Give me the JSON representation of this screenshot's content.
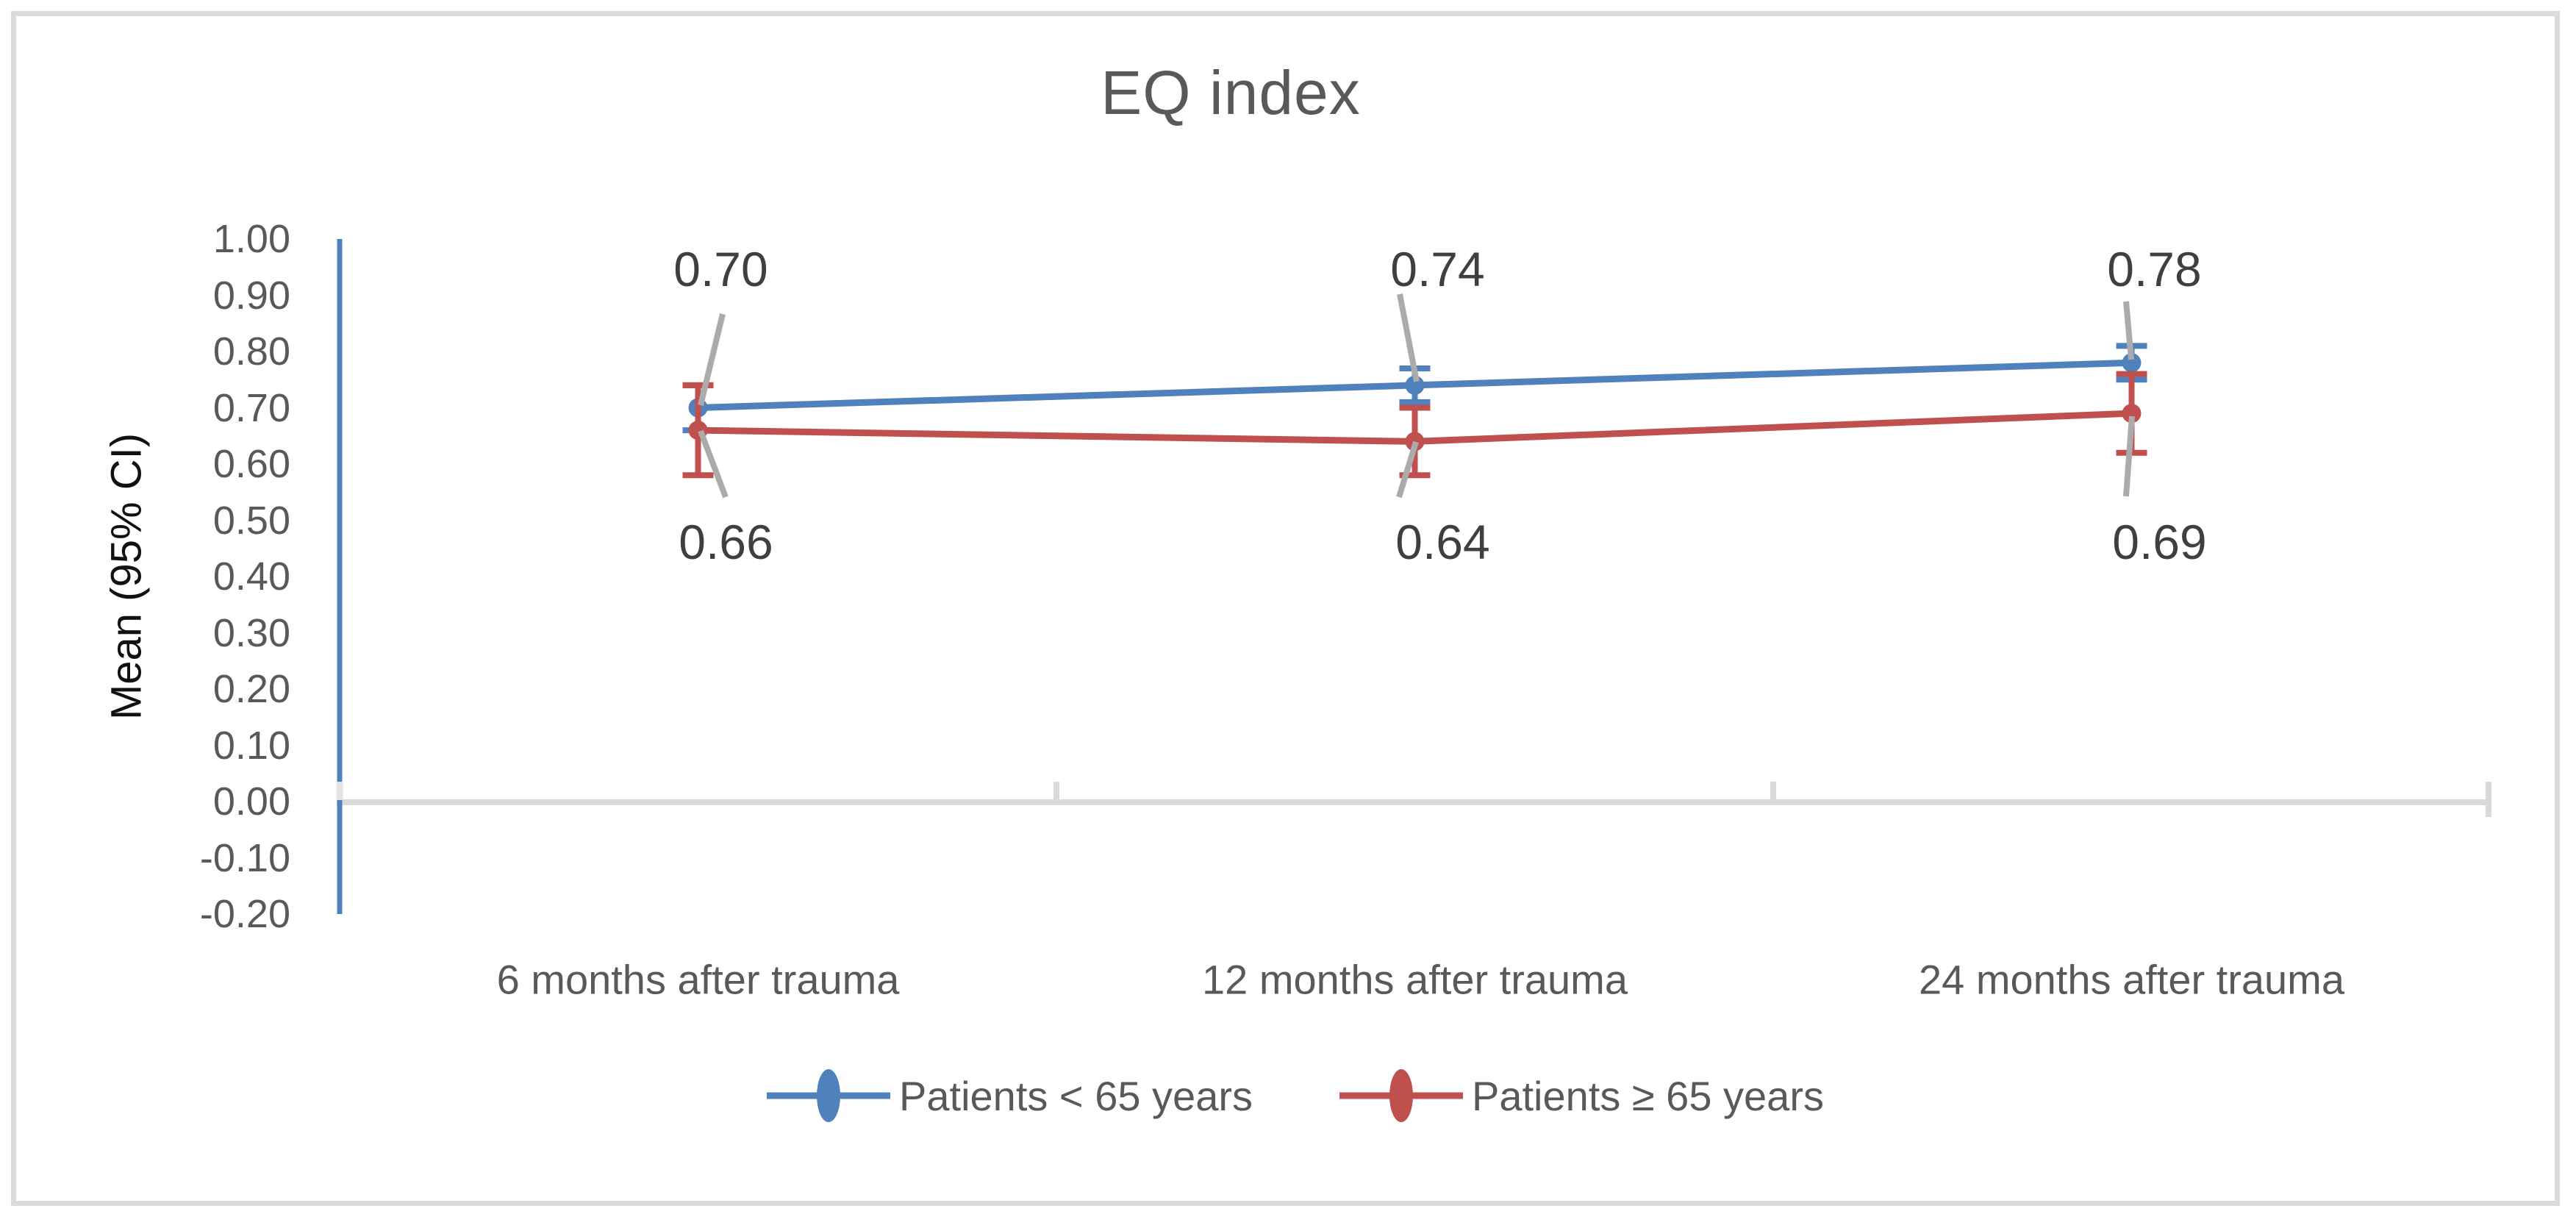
{
  "figure": {
    "title": "EQ index",
    "y_axis_title": "Mean (95% CI)"
  },
  "colors": {
    "series_blue": "#4F81BD",
    "series_red": "#C0504D",
    "axis_gray": "#D9D9D9",
    "leader_gray": "#ABABAB",
    "text_gray": "#595959",
    "data_label_gray": "#3F3F3F"
  },
  "chart_data": {
    "type": "line",
    "title": "EQ index",
    "xlabel": "",
    "ylabel": "Mean (95% CI)",
    "categories": [
      "6 months after trauma",
      "12 months after trauma",
      "24 months after trauma"
    ],
    "y_tick_labels": [
      "1.00",
      "0.90",
      "0.80",
      "0.70",
      "0.60",
      "0.50",
      "0.40",
      "0.30",
      "0.20",
      "0.10",
      "0.00",
      "-0.10",
      "-0.20"
    ],
    "y_tick_values": [
      1.0,
      0.9,
      0.8,
      0.7,
      0.6,
      0.5,
      0.4,
      0.3,
      0.2,
      0.1,
      0.0,
      -0.1,
      -0.2
    ],
    "ylim": [
      -0.2,
      1.0
    ],
    "grid": false,
    "legend_position": "bottom",
    "error_bars": "95% CI",
    "series": [
      {
        "name": "Patients < 65 years",
        "color": "#4F81BD",
        "values": [
          0.7,
          0.74,
          0.78
        ],
        "data_labels": [
          "0.70",
          "0.74",
          "0.78"
        ],
        "label_side": "above",
        "ci_low": [
          0.66,
          0.71,
          0.75
        ],
        "ci_high": [
          0.74,
          0.77,
          0.81
        ]
      },
      {
        "name": "Patients ≥ 65 years",
        "color": "#C0504D",
        "values": [
          0.66,
          0.64,
          0.69
        ],
        "data_labels": [
          "0.66",
          "0.64",
          "0.69"
        ],
        "label_side": "below",
        "ci_low": [
          0.58,
          0.58,
          0.62
        ],
        "ci_high": [
          0.74,
          0.7,
          0.76
        ]
      }
    ]
  }
}
